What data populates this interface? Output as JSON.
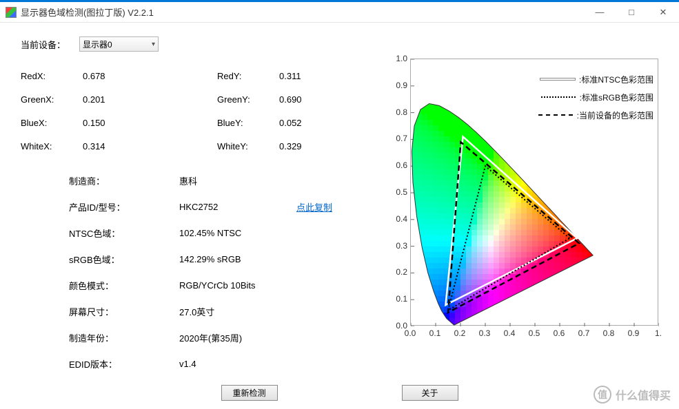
{
  "window": {
    "title": "显示器色域检测(图拉丁版) V2.2.1",
    "minimize_label": "—",
    "maximize_label": "□",
    "close_label": "✕"
  },
  "device": {
    "label": "当前设备：",
    "selected": "显示器0"
  },
  "coords": {
    "RedX": {
      "label": "RedX:",
      "value": "0.678"
    },
    "RedY": {
      "label": "RedY:",
      "value": "0.311"
    },
    "GreenX": {
      "label": "GreenX:",
      "value": "0.201"
    },
    "GreenY": {
      "label": "GreenY:",
      "value": "0.690"
    },
    "BlueX": {
      "label": "BlueX:",
      "value": "0.150"
    },
    "BlueY": {
      "label": "BlueY:",
      "value": "0.052"
    },
    "WhiteX": {
      "label": "WhiteX:",
      "value": "0.314"
    },
    "WhiteY": {
      "label": "WhiteY:",
      "value": "0.329"
    }
  },
  "info": {
    "manufacturer": {
      "label": "制造商：",
      "value": "惠科"
    },
    "product": {
      "label": "产品ID/型号：",
      "value": "HKC2752",
      "copy_link": "点此复制"
    },
    "ntsc": {
      "label": "NTSC色域：",
      "value": "102.45% NTSC"
    },
    "srgb": {
      "label": "sRGB色域：",
      "value": "142.29% sRGB"
    },
    "color_mode": {
      "label": "颜色模式：",
      "value": "RGB/YCrCb 10Bits"
    },
    "screen_size": {
      "label": "屏幕尺寸：",
      "value": "27.0英寸"
    },
    "mfg_year": {
      "label": "制造年份：",
      "value": "2020年(第35周)"
    },
    "edid": {
      "label": "EDID版本：",
      "value": "v1.4"
    }
  },
  "buttons": {
    "redetect": "重新检测",
    "about": "关于"
  },
  "chart": {
    "xlim": [
      0.0,
      1.0
    ],
    "ylim": [
      0.0,
      1.0
    ],
    "y_ticks": [
      "1.0",
      "0.9",
      "0.8",
      "0.7",
      "0.6",
      "0.5",
      "0.4",
      "0.3",
      "0.2",
      "0.1",
      "0.0"
    ],
    "x_ticks": [
      "0.0",
      "0.1",
      "0.2",
      "0.3",
      "0.4",
      "0.5",
      "0.6",
      "0.7",
      "0.8",
      "0.9",
      "1."
    ],
    "plot_border_color": "#aaaaaa",
    "background_color": "#ffffff",
    "tick_font_size": 12,
    "legend": [
      {
        "label": ":标准NTSC色彩范围",
        "style": "solid",
        "color": "#ffffff",
        "width": 2,
        "shadow": "#444"
      },
      {
        "label": ":标准sRGB色彩范围",
        "style": "dotted",
        "color": "#000000",
        "width": 2
      },
      {
        "label": ":当前设备的色彩范围",
        "style": "dashed",
        "color": "#000000",
        "width": 2
      }
    ],
    "spectral_locus": [
      [
        0.1741,
        0.005
      ],
      [
        0.144,
        0.0297
      ],
      [
        0.1241,
        0.0578
      ],
      [
        0.1096,
        0.0868
      ],
      [
        0.0913,
        0.1327
      ],
      [
        0.0687,
        0.2007
      ],
      [
        0.0454,
        0.295
      ],
      [
        0.0235,
        0.4127
      ],
      [
        0.0082,
        0.5384
      ],
      [
        0.0039,
        0.6548
      ],
      [
        0.0139,
        0.7502
      ],
      [
        0.0389,
        0.812
      ],
      [
        0.0743,
        0.8338
      ],
      [
        0.1142,
        0.8262
      ],
      [
        0.1547,
        0.8059
      ],
      [
        0.1929,
        0.7816
      ],
      [
        0.2296,
        0.7543
      ],
      [
        0.2658,
        0.7243
      ],
      [
        0.3016,
        0.6923
      ],
      [
        0.3373,
        0.6589
      ],
      [
        0.3731,
        0.6245
      ],
      [
        0.4087,
        0.5896
      ],
      [
        0.4441,
        0.5547
      ],
      [
        0.4788,
        0.5202
      ],
      [
        0.5125,
        0.4866
      ],
      [
        0.5448,
        0.4544
      ],
      [
        0.5752,
        0.4242
      ],
      [
        0.6029,
        0.3965
      ],
      [
        0.627,
        0.3725
      ],
      [
        0.6482,
        0.3514
      ],
      [
        0.6658,
        0.334
      ],
      [
        0.6801,
        0.3197
      ],
      [
        0.6915,
        0.3083
      ],
      [
        0.7006,
        0.2993
      ],
      [
        0.714,
        0.2859
      ],
      [
        0.726,
        0.274
      ],
      [
        0.734,
        0.266
      ]
    ],
    "ntsc_triangle": [
      [
        0.67,
        0.33
      ],
      [
        0.21,
        0.71
      ],
      [
        0.14,
        0.08
      ]
    ],
    "srgb_triangle": [
      [
        0.64,
        0.33
      ],
      [
        0.3,
        0.6
      ],
      [
        0.15,
        0.06
      ]
    ],
    "device_triangle": [
      [
        0.678,
        0.311
      ],
      [
        0.201,
        0.69
      ],
      [
        0.15,
        0.052
      ]
    ]
  },
  "watermark": {
    "icon_text": "值",
    "text": "什么值得买"
  }
}
